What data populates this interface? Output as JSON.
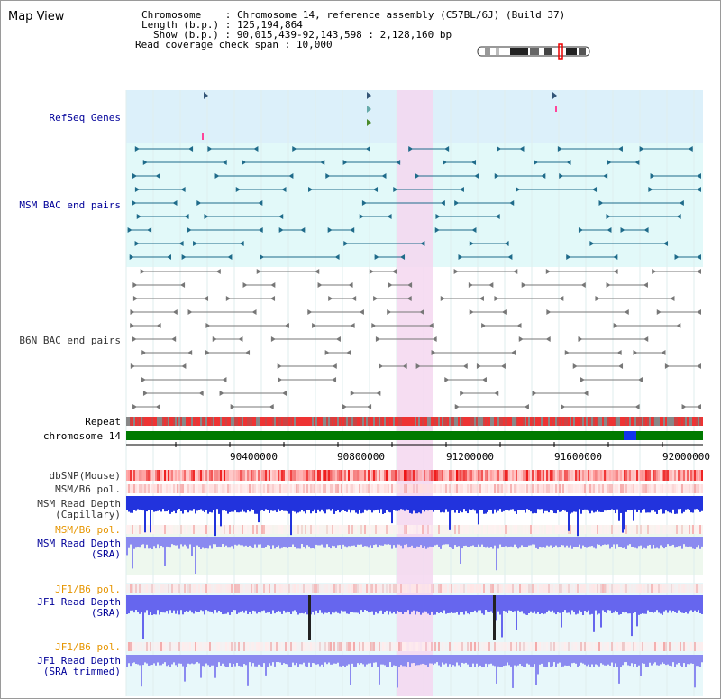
{
  "view_title": "Map View",
  "info": {
    "chromosome_key": "Chromosome",
    "chromosome_val": "Chromosome 14, reference assembly (C57BL/6J) (Build 37)",
    "length_key": "Length (b.p.)",
    "length_val": "125,194,864",
    "show_key": "Show (b.p.)",
    "show_val": "90,015,439-92,143,598 : 2,128,160 bp",
    "read_cov_key": "Read coverage check span",
    "read_cov_val": "10,000"
  },
  "tracks": {
    "refseq": "RefSeq Genes",
    "msm_bac": "MSM BAC end pairs",
    "b6n_bac": "B6N BAC end pairs",
    "repeat": "Repeat",
    "chromosome": "chromosome 14",
    "dbsnp": "dbSNP(Mouse)",
    "msm_b6_pol_1": "MSM/B6 pol.",
    "msm_depth_cap_1": "MSM Read Depth",
    "msm_depth_cap_2": "(Capillary)",
    "msm_b6_pol_2": "MSM/B6 pol.",
    "msm_depth_sra_1": "MSM Read Depth",
    "msm_depth_sra_2": "(SRA)",
    "jf1_b6_pol_1": "JF1/B6 pol.",
    "jf1_depth_sra_1": "JF1 Read Depth",
    "jf1_depth_sra_2": "(SRA)",
    "jf1_b6_pol_2": "JF1/B6 pol.",
    "jf1_depth_trim_1": "JF1 Read Depth",
    "jf1_depth_trim_2": "(SRA trimmed)"
  },
  "axis_ticks": [
    "90400000",
    "90800000",
    "91200000",
    "91600000",
    "92000000"
  ],
  "colors": {
    "refseq_bg": "#dcf0fa",
    "msm_bac_bg": "#e2f9f9",
    "highlight": "#f5d7f0",
    "chromosome": "#007a00",
    "depth_blue": "#2233dd",
    "label_blue": "#000099",
    "label_orange": "#e69500"
  }
}
